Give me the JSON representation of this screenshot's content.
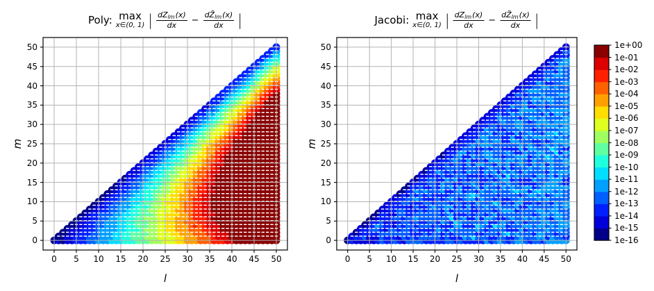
{
  "titles": {
    "left": {
      "prefix": "Poly:"
    },
    "right": {
      "prefix": "Jacobi:"
    },
    "shared": {
      "max": "max",
      "domain": "x∈(0, 1)",
      "pipe": "|",
      "num_d": "dZ",
      "num_d_tilde": "dZ̃",
      "sub": "lm",
      "arg": "(x)",
      "den": "dx",
      "minus": "−"
    }
  },
  "axes": {
    "xlabel": "l",
    "ylabel": "m",
    "xticks": [
      0,
      5,
      10,
      15,
      20,
      25,
      30,
      35,
      40,
      45,
      50
    ],
    "yticks": [
      0,
      5,
      10,
      15,
      20,
      25,
      30,
      35,
      40,
      45,
      50
    ],
    "xlim": [
      -2.5,
      52.5
    ],
    "ylim": [
      -2.5,
      52.5
    ],
    "grid": true,
    "grid_color": "#b3b3b3"
  },
  "colorbar": {
    "labels": [
      "1e+00",
      "1e-01",
      "1e-02",
      "1e-03",
      "1e-04",
      "1e-05",
      "1e-06",
      "1e-07",
      "1e-08",
      "1e-09",
      "1e-10",
      "1e-11",
      "1e-12",
      "1e-13",
      "1e-14",
      "1e-15",
      "1e-16"
    ],
    "colors_bottom_to_top": [
      "#000089",
      "#0000DC",
      "#0020FF",
      "#0060FF",
      "#00A0FF",
      "#00DFFF",
      "#20FFDE",
      "#60FFA0",
      "#A0FF60",
      "#DEFF20",
      "#FFDE00",
      "#FFA000",
      "#FF6000",
      "#FF2000",
      "#DC0000",
      "#890000"
    ]
  },
  "chart_data": [
    {
      "type": "scatter",
      "panel": "left",
      "title": "Poly: max_{x in (0,1)} |dZlm(x)/dx − dZ̃lm(x)/dx|",
      "xlabel": "l",
      "ylabel": "m",
      "xlim": [
        -2.5,
        52.5
      ],
      "ylim": [
        -2.5,
        52.5
      ],
      "points": "all integer pairs (l,m) with 0 <= m <= l <= 50",
      "color_scale": "log10 error, 16 discrete decade bins from 1e-16 (dark navy) to 1e+00 (dark red), jet colormap",
      "value_model": {
        "kind": "banded",
        "description": "log10(err) ≈ -15.5 + 0.045·m + (l−m)·(0.35 + 0.02·m) ± 0.3, clamped to [-16, 0]; error grows away from the m=l diagonal toward the bottom-right corner (≈1e+00 at l≥42, m≈0)",
        "base": -15.5,
        "m_coef": 0.045,
        "slope_base": 0.35,
        "slope_m_coef": 0.02,
        "noise": 0.6,
        "clamp": [
          -15.95,
          -0.05
        ]
      }
    },
    {
      "type": "scatter",
      "panel": "right",
      "title": "Jacobi: max_{x in (0,1)} |dZlm(x)/dx − dZ̃lm(x)/dx|",
      "xlabel": "l",
      "ylabel": "m",
      "xlim": [
        -2.5,
        52.5
      ],
      "ylim": [
        -2.5,
        52.5
      ],
      "points": "all integer pairs (l,m) with 0 <= m <= l <= 50",
      "color_scale": "log10 error, same 16-bin scale; values stay between ~1e-15 and ~1e-10",
      "value_model": {
        "kind": "noisy",
        "description": "diagonal m=l darkest ≈1e-15; interior random ≈1e-14…1e-11, slightly brighter (larger error) at higher l, rare cyan outliers ≈1e-10",
        "diag_base": -15.35,
        "diag_l_coef": 0.01,
        "diag_noise": 0.9,
        "edge_band": 2,
        "edge_base": -14.4,
        "edge_l_coef": 0.012,
        "edge_noise": 1.0,
        "base": -14.65,
        "l_coef": 0.03,
        "noise": 2.2,
        "outlier_prob": 0.04,
        "outlier_boost": 1.2,
        "clamp": [
          -15.95,
          -9.6
        ]
      }
    }
  ]
}
